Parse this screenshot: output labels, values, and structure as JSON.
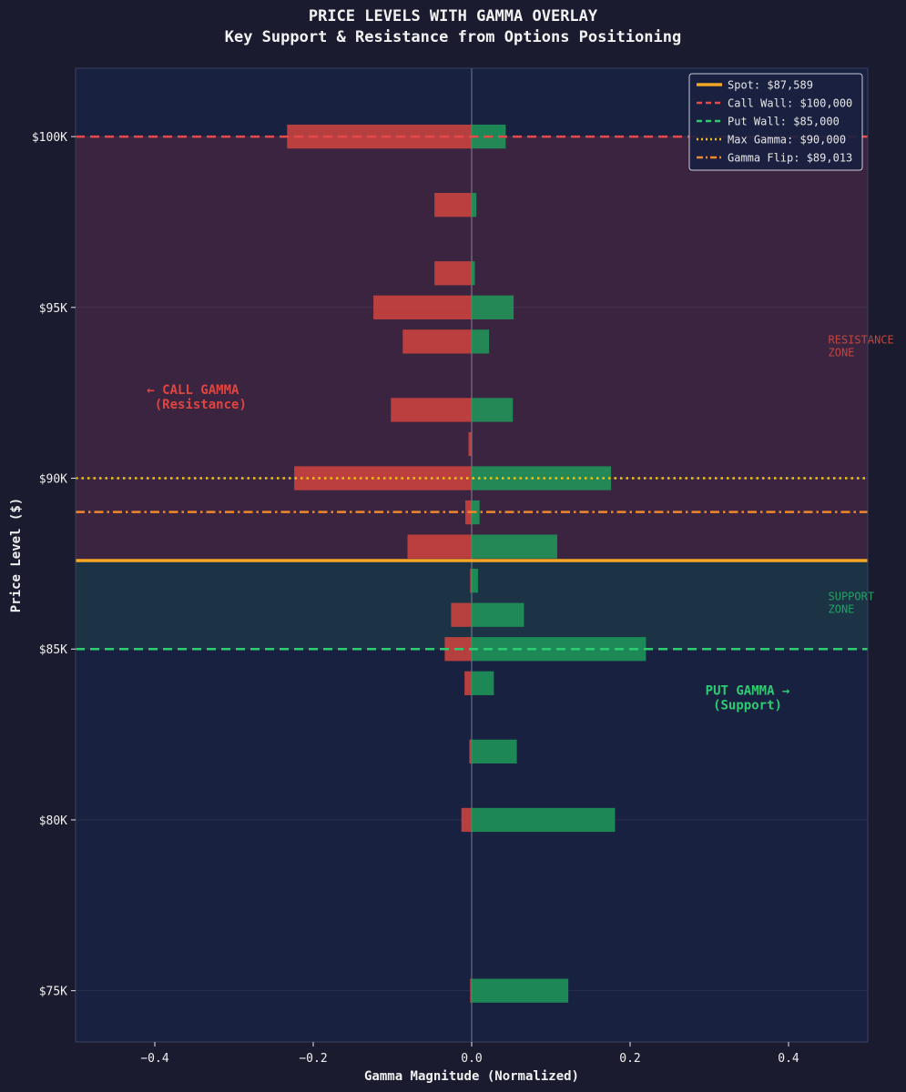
{
  "chart_data": {
    "type": "bar",
    "orientation": "horizontal",
    "title": "PRICE LEVELS WITH GAMMA OVERLAY",
    "subtitle": "Key Support & Resistance from Options Positioning",
    "xlabel": "Gamma Magnitude (Normalized)",
    "ylabel": "Price Level ($)",
    "xlim": [
      -0.5,
      0.5
    ],
    "ylim": [
      73500,
      102000
    ],
    "xticks": [
      -0.4,
      -0.2,
      0.0,
      0.2,
      0.4
    ],
    "xtick_labels": [
      "−0.4",
      "−0.2",
      "0.0",
      "0.2",
      "0.4"
    ],
    "yticks": [
      75000,
      80000,
      85000,
      90000,
      95000,
      100000
    ],
    "ytick_labels": [
      "$75K",
      "$80K",
      "$85K",
      "$90K",
      "$95K",
      "$100K"
    ],
    "grid": true,
    "legend_position": "top-right",
    "series": [
      {
        "name": "Call Gamma",
        "color": "#d9463f",
        "points": [
          {
            "price": 100000,
            "value": -0.233
          },
          {
            "price": 98000,
            "value": -0.047
          },
          {
            "price": 96000,
            "value": -0.047
          },
          {
            "price": 95000,
            "value": -0.124
          },
          {
            "price": 94000,
            "value": -0.087
          },
          {
            "price": 92000,
            "value": -0.102
          },
          {
            "price": 91000,
            "value": -0.004
          },
          {
            "price": 90000,
            "value": -0.224
          },
          {
            "price": 89000,
            "value": -0.008
          },
          {
            "price": 88000,
            "value": -0.081
          },
          {
            "price": 87000,
            "value": -0.002
          },
          {
            "price": 86000,
            "value": -0.026
          },
          {
            "price": 85000,
            "value": -0.034
          },
          {
            "price": 84000,
            "value": -0.009
          },
          {
            "price": 82000,
            "value": -0.003
          },
          {
            "price": 80000,
            "value": -0.013
          },
          {
            "price": 75000,
            "value": -0.002
          }
        ]
      },
      {
        "name": "Put Gamma",
        "color": "#1e9e5c",
        "points": [
          {
            "price": 100000,
            "value": 0.043
          },
          {
            "price": 98000,
            "value": 0.006
          },
          {
            "price": 96000,
            "value": 0.004
          },
          {
            "price": 95000,
            "value": 0.053
          },
          {
            "price": 94000,
            "value": 0.022
          },
          {
            "price": 92000,
            "value": 0.052
          },
          {
            "price": 90000,
            "value": 0.176
          },
          {
            "price": 89000,
            "value": 0.01
          },
          {
            "price": 88000,
            "value": 0.108
          },
          {
            "price": 87000,
            "value": 0.008
          },
          {
            "price": 86000,
            "value": 0.066
          },
          {
            "price": 85000,
            "value": 0.22
          },
          {
            "price": 84000,
            "value": 0.028
          },
          {
            "price": 82000,
            "value": 0.057
          },
          {
            "price": 80000,
            "value": 0.181
          },
          {
            "price": 75000,
            "value": 0.122
          }
        ]
      }
    ],
    "levels": [
      {
        "name": "spot",
        "label": "Spot: $87,589",
        "price": 87589,
        "color": "#f5a623",
        "style": "solid"
      },
      {
        "name": "call-wall",
        "label": "Call Wall: $100,000",
        "price": 100000,
        "color": "#e84a4a",
        "style": "dashed"
      },
      {
        "name": "put-wall",
        "label": "Put Wall: $85,000",
        "price": 85000,
        "color": "#2ecc71",
        "style": "dashed"
      },
      {
        "name": "max-gamma",
        "label": "Max Gamma: $90,000",
        "price": 90000,
        "color": "#f1c40f",
        "style": "dotted"
      },
      {
        "name": "gamma-flip",
        "label": "Gamma Flip: $89,013",
        "price": 89013,
        "color": "#f0882a",
        "style": "dashdot"
      }
    ],
    "zones": [
      {
        "name": "resistance",
        "from": 87589,
        "to": 100000,
        "color": "#3a2440"
      },
      {
        "name": "support",
        "from": 85000,
        "to": 87589,
        "color": "#1b3344"
      }
    ],
    "annotations": [
      {
        "name": "call-gamma-note",
        "lines": [
          "← CALL GAMMA",
          "  (Resistance)"
        ],
        "x": -0.41,
        "price": 92250,
        "color": "#e0453f"
      },
      {
        "name": "put-gamma-note",
        "lines": [
          "PUT GAMMA →",
          "   (Support)"
        ],
        "x": 0.295,
        "price": 83450,
        "color": "#2ecc71"
      },
      {
        "name": "resistance-zone-label",
        "lines": [
          "RESISTANCE",
          "ZONE"
        ],
        "x": 0.45,
        "price": 93750,
        "color": "#c0463f"
      },
      {
        "name": "support-zone-label",
        "lines": [
          "SUPPORT",
          "ZONE"
        ],
        "x": 0.45,
        "price": 86250,
        "color": "#21a266"
      }
    ]
  }
}
